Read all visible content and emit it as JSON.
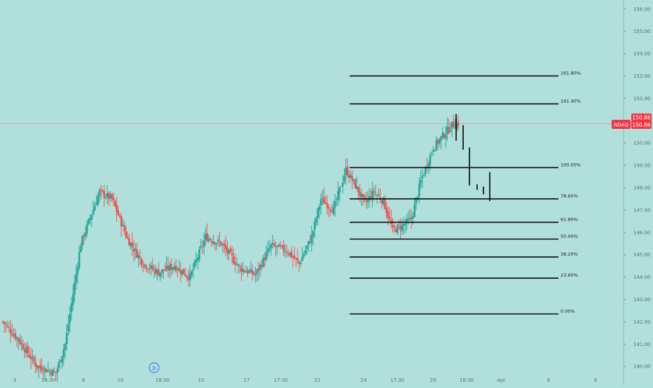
{
  "colors": {
    "background": "#b1e0dc",
    "up": "#26a69a",
    "down": "#ef5350",
    "fib_line": "#0b0b0b",
    "projection": "#000000",
    "price_badge": "#f23645",
    "axis_text": "#5a6b6b"
  },
  "chart_data": {
    "type": "candlestick",
    "symbol": "NDAQ",
    "last_price": "150.86",
    "symbol_badge": "NDAQ",
    "interval_marker": "D",
    "x_tick_labels": [
      "3",
      "18:30",
      "8",
      "10",
      "18:30",
      "15",
      "17",
      "17:30",
      "22",
      "24",
      "17:30",
      "29",
      "18:30",
      "Apr",
      "6",
      "8"
    ],
    "y_axis": {
      "range": [
        139.6,
        156.4
      ],
      "ticks": [
        "140.00",
        "141.00",
        "142.00",
        "143.00",
        "144.00",
        "145.00",
        "146.00",
        "147.00",
        "148.00",
        "149.00",
        "150.00",
        "151.00",
        "152.00",
        "153.00",
        "154.00",
        "155.00",
        "156.00"
      ]
    },
    "fib_levels": [
      {
        "label": "161.80%",
        "price": 153.0
      },
      {
        "label": "141.40%",
        "price": 151.75
      },
      {
        "label": "100.00%",
        "price": 148.9
      },
      {
        "label": "78.60%",
        "price": 147.5
      },
      {
        "label": "61.80%",
        "price": 146.45
      },
      {
        "label": "50.00%",
        "price": 145.7
      },
      {
        "label": "38.20%",
        "price": 144.9
      },
      {
        "label": "23.60%",
        "price": 143.95
      },
      {
        "label": "0.00%",
        "price": 142.35
      }
    ],
    "anchors": [
      {
        "x": 0,
        "y": 142.0
      },
      {
        "x": 10,
        "y": 141.2
      },
      {
        "x": 22,
        "y": 140.0
      },
      {
        "x": 34,
        "y": 139.7
      },
      {
        "x": 40,
        "y": 141.0
      },
      {
        "x": 50,
        "y": 145.5
      },
      {
        "x": 62,
        "y": 147.8
      },
      {
        "x": 70,
        "y": 147.5
      },
      {
        "x": 80,
        "y": 145.7
      },
      {
        "x": 90,
        "y": 144.6
      },
      {
        "x": 100,
        "y": 144.2
      },
      {
        "x": 110,
        "y": 144.5
      },
      {
        "x": 120,
        "y": 144.0
      },
      {
        "x": 130,
        "y": 145.8
      },
      {
        "x": 140,
        "y": 145.5
      },
      {
        "x": 152,
        "y": 144.4
      },
      {
        "x": 162,
        "y": 144.1
      },
      {
        "x": 172,
        "y": 145.4
      },
      {
        "x": 182,
        "y": 145.2
      },
      {
        "x": 190,
        "y": 144.6
      },
      {
        "x": 198,
        "y": 145.8
      },
      {
        "x": 204,
        "y": 147.5
      },
      {
        "x": 212,
        "y": 147.0
      },
      {
        "x": 220,
        "y": 148.8
      },
      {
        "x": 226,
        "y": 148.1
      },
      {
        "x": 232,
        "y": 147.3
      },
      {
        "x": 238,
        "y": 147.8
      },
      {
        "x": 244,
        "y": 147.4
      },
      {
        "x": 250,
        "y": 146.1
      },
      {
        "x": 256,
        "y": 146.3
      },
      {
        "x": 262,
        "y": 146.6
      },
      {
        "x": 268,
        "y": 148.3
      },
      {
        "x": 276,
        "y": 149.8
      },
      {
        "x": 282,
        "y": 150.3
      },
      {
        "x": 288,
        "y": 150.8
      },
      {
        "x": 292,
        "y": 150.86
      }
    ],
    "projection_bars": [
      {
        "x_date": "Mar 30",
        "high": 151.3,
        "low": 150.1
      },
      {
        "x_date": "Mar 31",
        "high": 150.8,
        "low": 149.7
      },
      {
        "x_date": "Apr 1",
        "high": 149.8,
        "low": 148.1
      },
      {
        "x_date": "Apr 1.5",
        "high": 148.15,
        "low": 147.9
      },
      {
        "x_date": "Apr 2",
        "high": 148.05,
        "low": 147.7
      },
      {
        "x_date": "Apr 2.5",
        "high": 148.7,
        "low": 147.4
      }
    ]
  }
}
